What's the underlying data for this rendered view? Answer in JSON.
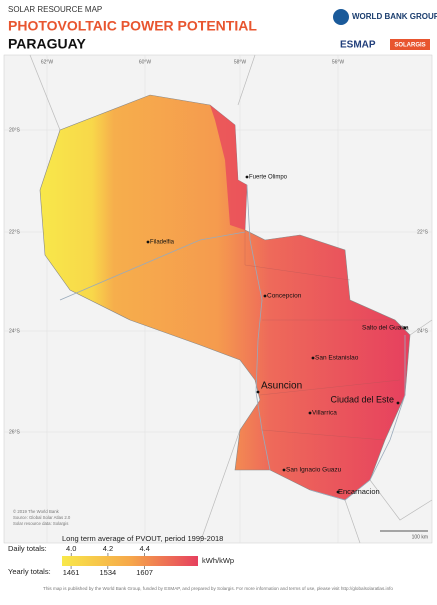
{
  "header": {
    "kicker": "SOLAR RESOURCE MAP",
    "title": "PHOTOVOLTAIC POWER POTENTIAL",
    "country": "PARAGUAY"
  },
  "logos": {
    "world_bank": "WORLD BANK GROUP",
    "esmap": "ESMAP",
    "solargis": "SOLARGIS"
  },
  "map": {
    "longitudes": [
      "62°W",
      "60°W",
      "58°W",
      "56°W"
    ],
    "latitudes": [
      "20°S",
      "22°S",
      "24°S",
      "26°S"
    ],
    "cities": [
      "Fuerte Olimpo",
      "Filadelfia",
      "Concepcion",
      "Salto del Guaira",
      "San Estanislao",
      "Asuncion",
      "Ciudad del Este",
      "Villarrica",
      "San Ignacio Guazu",
      "Encarnacion"
    ],
    "credits": [
      "© 2019 The World Bank",
      "Source: Global Solar Atlas 2.0",
      "Solar resource data: Solargis"
    ],
    "scale_bar": "100 km"
  },
  "legend": {
    "title": "Long term average of PVOUT, period 1999-2018",
    "daily_label": "Daily totals:",
    "daily_lim": [
      3.95,
      4.69
    ],
    "daily_ticks": [
      {
        "value": 4.0,
        "label": "4.0"
      },
      {
        "value": 4.2,
        "label": "4.2"
      },
      {
        "value": 4.4,
        "label": "4.4"
      }
    ],
    "unit": "kWh/kWp",
    "yearly_label": "Yearly totals:",
    "yearly_lim": [
      1443,
      1713
    ],
    "yearly_ticks": [
      1461,
      1534,
      1607
    ],
    "colors": [
      "#f8e84a",
      "#f6a84a",
      "#e6405e"
    ]
  },
  "footer": "This map is published by the World Bank Group, funded by ESMAP, and prepared by Solargis. For more information and terms of use, please visit http://globalsolaratlas.info"
}
